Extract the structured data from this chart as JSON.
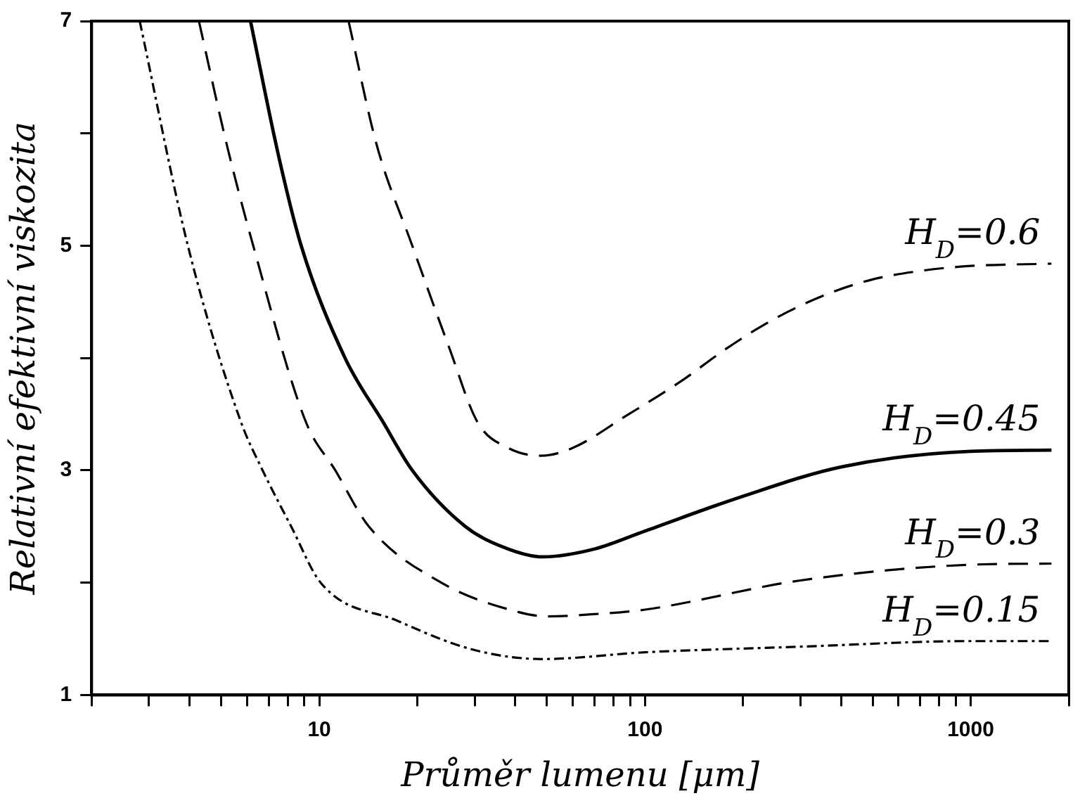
{
  "chart_data": {
    "type": "line",
    "xlabel": "Průměr lumenu [μm]",
    "ylabel": "Relativní efektivní viskozita",
    "log": "x",
    "xlim": [
      2,
      2000
    ],
    "ylim": [
      1,
      7
    ],
    "xticks": [
      {
        "value": 2,
        "label": null
      },
      {
        "value": 3,
        "label": null
      },
      {
        "value": 4,
        "label": null
      },
      {
        "value": 5,
        "label": null
      },
      {
        "value": 6,
        "label": null
      },
      {
        "value": 7,
        "label": null
      },
      {
        "value": 8,
        "label": null
      },
      {
        "value": 9,
        "label": null
      },
      10,
      {
        "value": 20,
        "label": null
      },
      {
        "value": 30,
        "label": null
      },
      {
        "value": 40,
        "label": null
      },
      {
        "value": 50,
        "label": null
      },
      {
        "value": 60,
        "label": null
      },
      {
        "value": 70,
        "label": null
      },
      {
        "value": 80,
        "label": null
      },
      {
        "value": 90,
        "label": null
      },
      100,
      {
        "value": 200,
        "label": null
      },
      {
        "value": 300,
        "label": null
      },
      {
        "value": 400,
        "label": null
      },
      {
        "value": 500,
        "label": null
      },
      {
        "value": 600,
        "label": null
      },
      {
        "value": 700,
        "label": null
      },
      {
        "value": 800,
        "label": null
      },
      {
        "value": 900,
        "label": null
      },
      1000,
      {
        "value": 2000,
        "label": null
      }
    ],
    "yticks": [
      1,
      {
        "value": 2,
        "label": null
      },
      3,
      {
        "value": 4,
        "label": null
      },
      5,
      {
        "value": 6,
        "label": null
      },
      7
    ],
    "marker": "none",
    "series": [
      {
        "name": "H$_{D}$=0.6",
        "color": "#000000",
        "line_style": "dashed",
        "x": [
          12.3,
          15,
          19.3,
          25,
          30.6,
          38,
          48,
          60,
          88,
          130,
          177,
          250,
          363,
          500,
          718,
          1000,
          1770
        ],
        "values": [
          7,
          5.9,
          5,
          4.1,
          3.43,
          3.2,
          3.13,
          3.2,
          3.49,
          3.8,
          4.08,
          4.35,
          4.57,
          4.7,
          4.78,
          4.82,
          4.84
        ]
      },
      {
        "name": "H$_{D}$=0.45",
        "color": "#000000",
        "line_style": "solid",
        "x": [
          6.15,
          7.5,
          8.8,
          12,
          15.7,
          19.3,
          28.1,
          38,
          48.5,
          70,
          100,
          200,
          400,
          1000,
          1770
        ],
        "values": [
          7,
          5.8,
          5,
          4,
          3.43,
          3,
          2.5,
          2.3,
          2.23,
          2.3,
          2.46,
          2.77,
          3.03,
          3.17,
          3.18
        ]
      },
      {
        "name": "H$_{D}$=0.3",
        "color": "#000000",
        "line_style": "dashed",
        "x": [
          4.27,
          5.2,
          6.27,
          9.1,
          11.2,
          14.2,
          23.7,
          39.5,
          50,
          70,
          100,
          300,
          1000,
          1770
        ],
        "values": [
          7,
          5.9,
          5,
          3.43,
          3,
          2.5,
          2,
          1.75,
          1.7,
          1.72,
          1.76,
          2.02,
          2.16,
          2.17
        ]
      },
      {
        "name": "H$_{D}$=0.15",
        "color": "#000000",
        "line_style": "dashdot",
        "x": [
          2.81,
          3.95,
          5.75,
          6.7,
          8.2,
          10.1,
          17.4,
          30,
          48.5,
          100,
          300,
          1000,
          1770
        ],
        "values": [
          7,
          5,
          3.43,
          3,
          2.5,
          2,
          1.66,
          1.4,
          1.32,
          1.38,
          1.43,
          1.48,
          1.48
        ]
      }
    ]
  }
}
